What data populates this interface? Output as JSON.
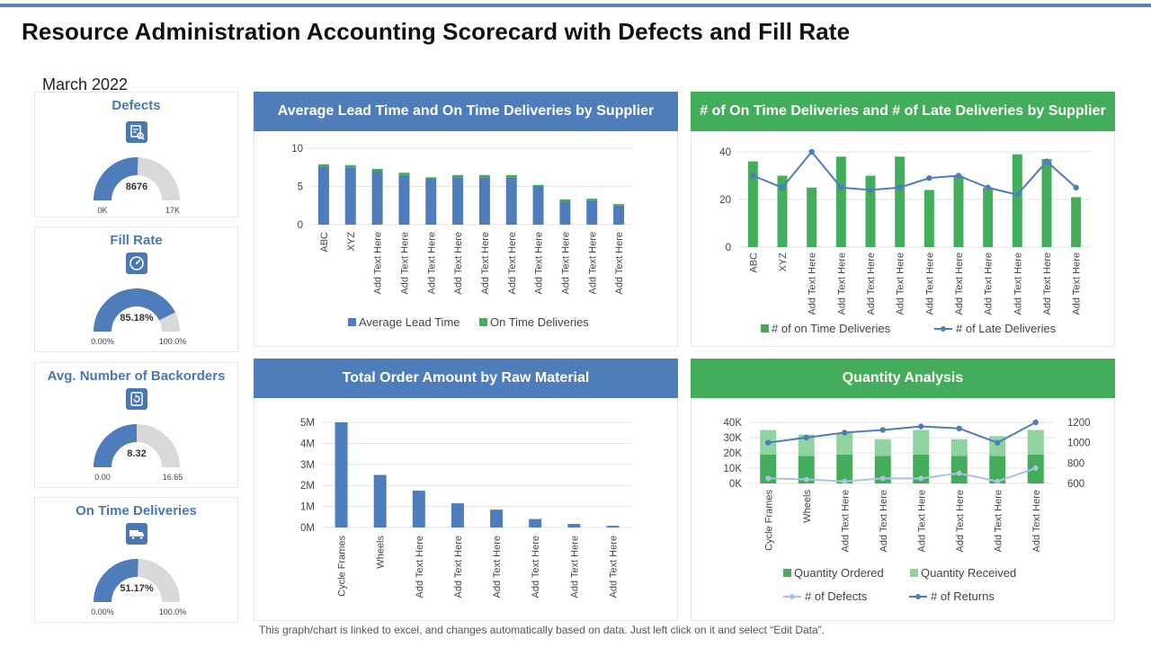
{
  "page": {
    "title": "Resource Administration Accounting Scorecard with Defects and Fill Rate",
    "subtitle": "March 2022",
    "footer": "This graph/chart is linked to excel, and changes automatically based on data. Just left click on it and select “Edit Data”."
  },
  "colors": {
    "blue": "#4f7dbb",
    "green": "#44ad5c",
    "light_green": "#8fd3a0",
    "light_blue": "#a9c4dd",
    "gauge_bg": "#d9d9d9"
  },
  "kpis": [
    {
      "title": "Defects",
      "icon": "defects-report-icon",
      "value": "8676",
      "min": "0K",
      "max": "17K",
      "fraction": 0.51
    },
    {
      "title": "Fill Rate",
      "icon": "gauge-dial-icon",
      "value": "85.18%",
      "min": "0.00%",
      "max": "100.0%",
      "fraction": 0.8518
    },
    {
      "title": "Avg. Number of Backorders",
      "icon": "backorder-refresh-icon",
      "value": "8.32",
      "min": "0.00",
      "max": "16.65",
      "fraction": 0.5
    },
    {
      "title": "On Time Deliveries",
      "icon": "delivery-truck-icon",
      "value": "51.17%",
      "min": "0.00%",
      "max": "100.0%",
      "fraction": 0.5117
    }
  ],
  "panels": {
    "p1_title": "Average Lead Time and On Time Deliveries by Supplier",
    "p2_title": "# of On Time Deliveries and # of Late Deliveries by Supplier",
    "p3_title": "Total Order Amount by Raw Material",
    "p4_title": "Quantity Analysis"
  },
  "chart_data": [
    {
      "id": "lead_time",
      "type": "bar",
      "stacked": true,
      "categories": [
        "ABC",
        "XYZ",
        "Add Text Here",
        "Add Text Here",
        "Add Text Here",
        "Add Text Here",
        "Add Text Here",
        "Add Text Here",
        "Add Text Here",
        "Add Text Here",
        "Add Text Here",
        "Add Text Here"
      ],
      "series": [
        {
          "name": "Average Lead Time",
          "values": [
            7.6,
            7.5,
            7.0,
            6.5,
            6.0,
            6.2,
            6.2,
            6.2,
            5.0,
            3.0,
            3.2,
            2.5
          ]
        },
        {
          "name": "On Time Deliveries",
          "values": [
            0.3,
            0.3,
            0.3,
            0.3,
            0.2,
            0.3,
            0.3,
            0.3,
            0.2,
            0.3,
            0.2,
            0.2
          ]
        }
      ],
      "ylim": [
        0,
        10
      ],
      "yticks": [
        "0",
        "5",
        "10"
      ],
      "legend": "bottom"
    },
    {
      "id": "deliveries",
      "type": "bar+line",
      "categories": [
        "ABC",
        "XYZ",
        "Add Text Here",
        "Add Text Here",
        "Add Text Here",
        "Add Text Here",
        "Add Text Here",
        "Add Text Here",
        "Add Text Here",
        "Add Text Here",
        "Add Text Here",
        "Add Text Here"
      ],
      "series": [
        {
          "name": "# of on Time Deliveries",
          "type": "bar",
          "values": [
            36,
            30,
            25,
            38,
            30,
            38,
            24,
            30,
            25,
            39,
            37,
            21
          ]
        },
        {
          "name": "# of Late Deliveries",
          "type": "line",
          "values": [
            30,
            25,
            40,
            25,
            24,
            25,
            29,
            30,
            25,
            22,
            36,
            25
          ]
        }
      ],
      "ylim": [
        0,
        40
      ],
      "yticks": [
        "0",
        "20",
        "40"
      ],
      "legend": "bottom"
    },
    {
      "id": "order_amount",
      "type": "bar",
      "categories": [
        "Cycle Frames",
        "Wheels",
        "Add Text Here",
        "Add Text Here",
        "Add Text Here",
        "Add Text Here",
        "Add Text Here",
        "Add Text Here"
      ],
      "values": [
        5000000,
        2500000,
        1750000,
        1150000,
        850000,
        400000,
        170000,
        80000
      ],
      "ylim": [
        0,
        5000000
      ],
      "yticks": [
        "0M",
        "1M",
        "2M",
        "3M",
        "4M",
        "5M"
      ]
    },
    {
      "id": "quantity",
      "type": "bar+line",
      "categories": [
        "Cycle Frames",
        "Wheels",
        "Add Text Here",
        "Add Text Here",
        "Add Text Here",
        "Add Text Here",
        "Add Text Here",
        "Add Text Here"
      ],
      "series": [
        {
          "name": "Quantity Ordered",
          "type": "bar",
          "values": [
            19000,
            18000,
            19000,
            18000,
            19000,
            18000,
            18000,
            19000
          ]
        },
        {
          "name": "Quantity Received",
          "type": "bar",
          "values": [
            16000,
            14000,
            14000,
            11000,
            16000,
            11000,
            13000,
            16000
          ]
        },
        {
          "name": "# of Defects",
          "type": "line",
          "axis": "right",
          "values": [
            650,
            640,
            620,
            650,
            650,
            700,
            620,
            750
          ]
        },
        {
          "name": "# of Returns",
          "type": "line",
          "axis": "right",
          "values": [
            1000,
            1050,
            1100,
            1125,
            1160,
            1140,
            1000,
            1200
          ]
        }
      ],
      "ylim": [
        0,
        40000
      ],
      "yticks": [
        "0K",
        "10K",
        "20K",
        "30K",
        "40K"
      ],
      "y2lim": [
        600,
        1200
      ],
      "y2ticks": [
        "600",
        "800",
        "1000",
        "1200"
      ],
      "legend": "bottom"
    }
  ]
}
